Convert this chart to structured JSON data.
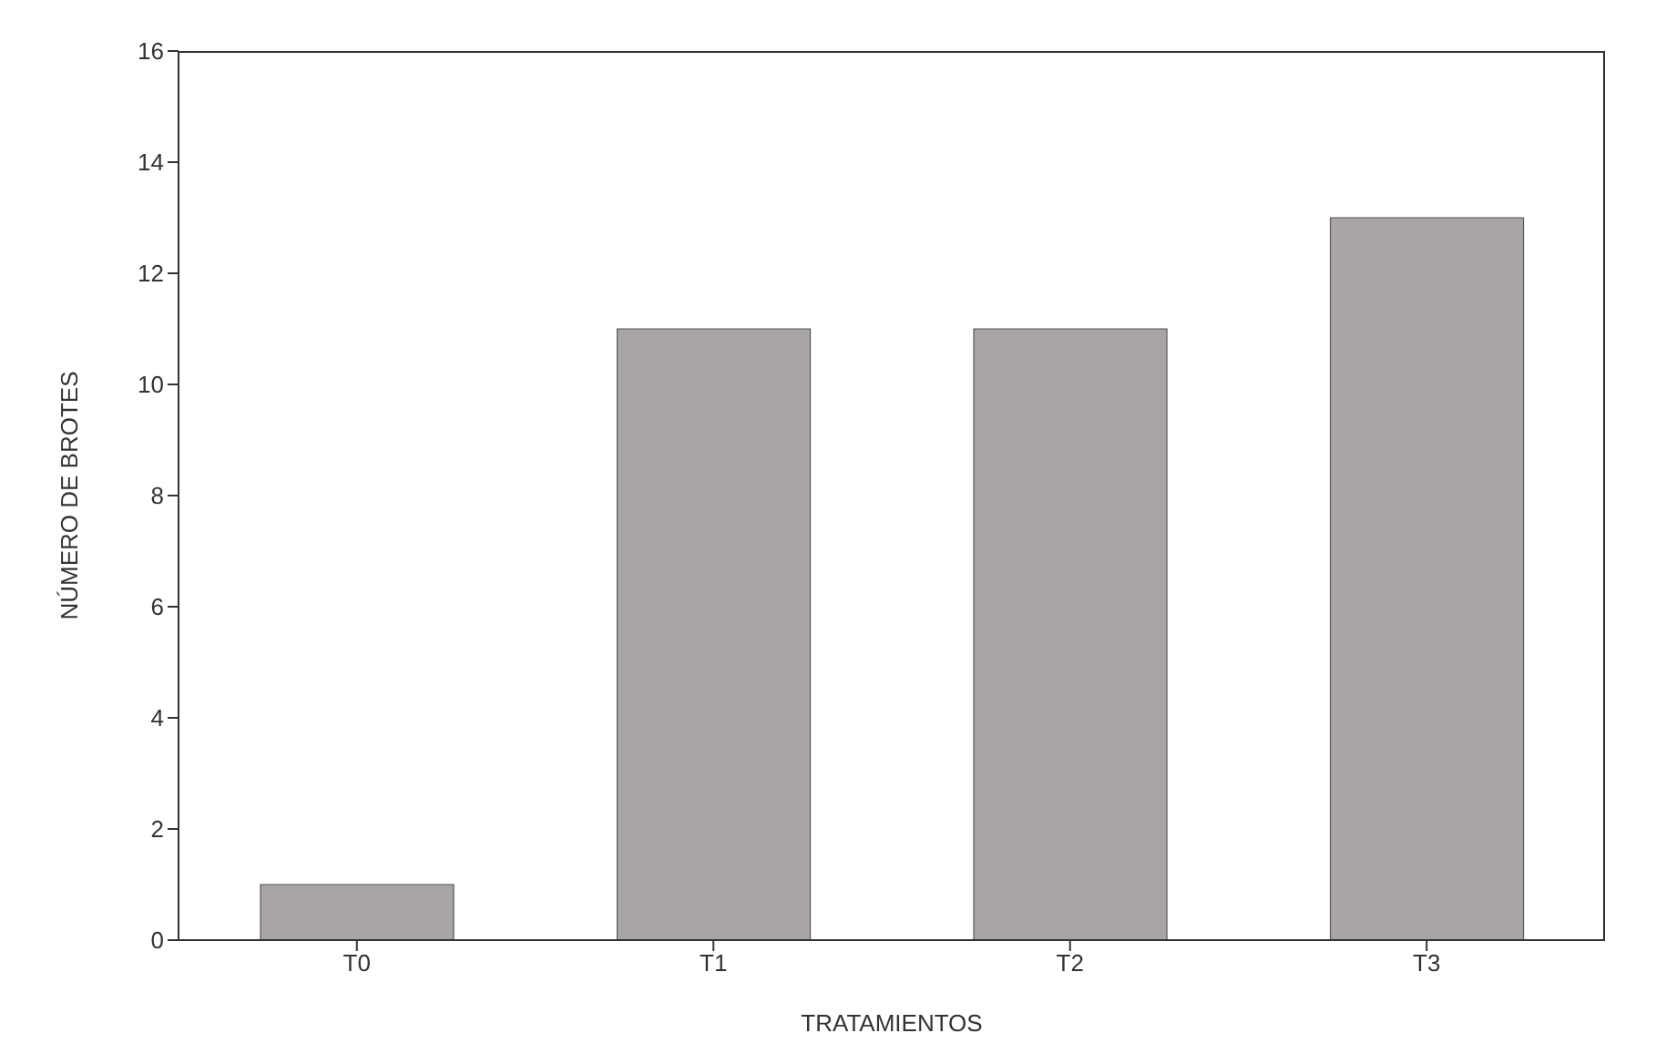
{
  "chart_data": {
    "type": "bar",
    "xlabel": "TRATAMIENTOS",
    "ylabel": "NÚMERO DE BROTES",
    "categories": [
      "T0",
      "T1",
      "T2",
      "T3"
    ],
    "values": [
      1,
      11,
      11,
      13
    ],
    "color": "#a9a5a7",
    "ylim": [
      0,
      16
    ],
    "yticks": [
      0,
      2,
      4,
      6,
      8,
      10,
      12,
      14,
      16
    ],
    "grid": false
  }
}
